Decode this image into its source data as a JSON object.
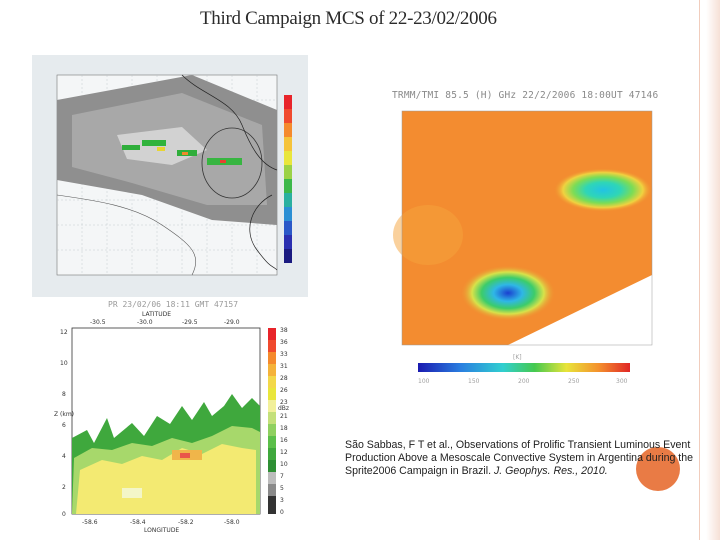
{
  "slide": {
    "title": "Third Campaign MCS of 22-23/02/2006"
  },
  "trmm_panel": {
    "header": "TRMM/TMI 85.5 (H) GHz 22/2/2006 18:00UT 47146",
    "colorbar_labels": [
      "100",
      "150",
      "200",
      "250",
      "300"
    ],
    "colorbar_unit": "[K]"
  },
  "profile_panel": {
    "caption": "PR 23/02/06 18:11 GMT 47157",
    "top_axis_label": "LATITUDE",
    "top_ticks": [
      "-30.5",
      "-30.0",
      "-29.5",
      "-29.0"
    ],
    "bottom_axis_label": "LONGITUDE",
    "bottom_ticks": [
      "-58.6",
      "-58.4",
      "-58.2",
      "-58.0"
    ],
    "z_label": "Z (km)",
    "z_ticks": [
      "12",
      "10",
      "8",
      "6",
      "4",
      "2",
      "0"
    ],
    "dbz_unit": "dBz",
    "dbz_ticks": [
      "38",
      "36",
      "33",
      "31",
      "28",
      "26",
      "23",
      "21",
      "18",
      "16",
      "12",
      "10",
      "7",
      "5",
      "3",
      "0"
    ]
  },
  "citation": {
    "text": "São Sabbas, F T et al., Observations of Prolific Transient Luminous Event Production Above a Mesoscale Convective System in Argentina during the Sprite2006 Campaign in Brazil.",
    "journal": "J. Geophys. Res., 2010."
  },
  "colors": {
    "accent_border": "#f1cdbd",
    "orange_marker": "#e8743b"
  }
}
